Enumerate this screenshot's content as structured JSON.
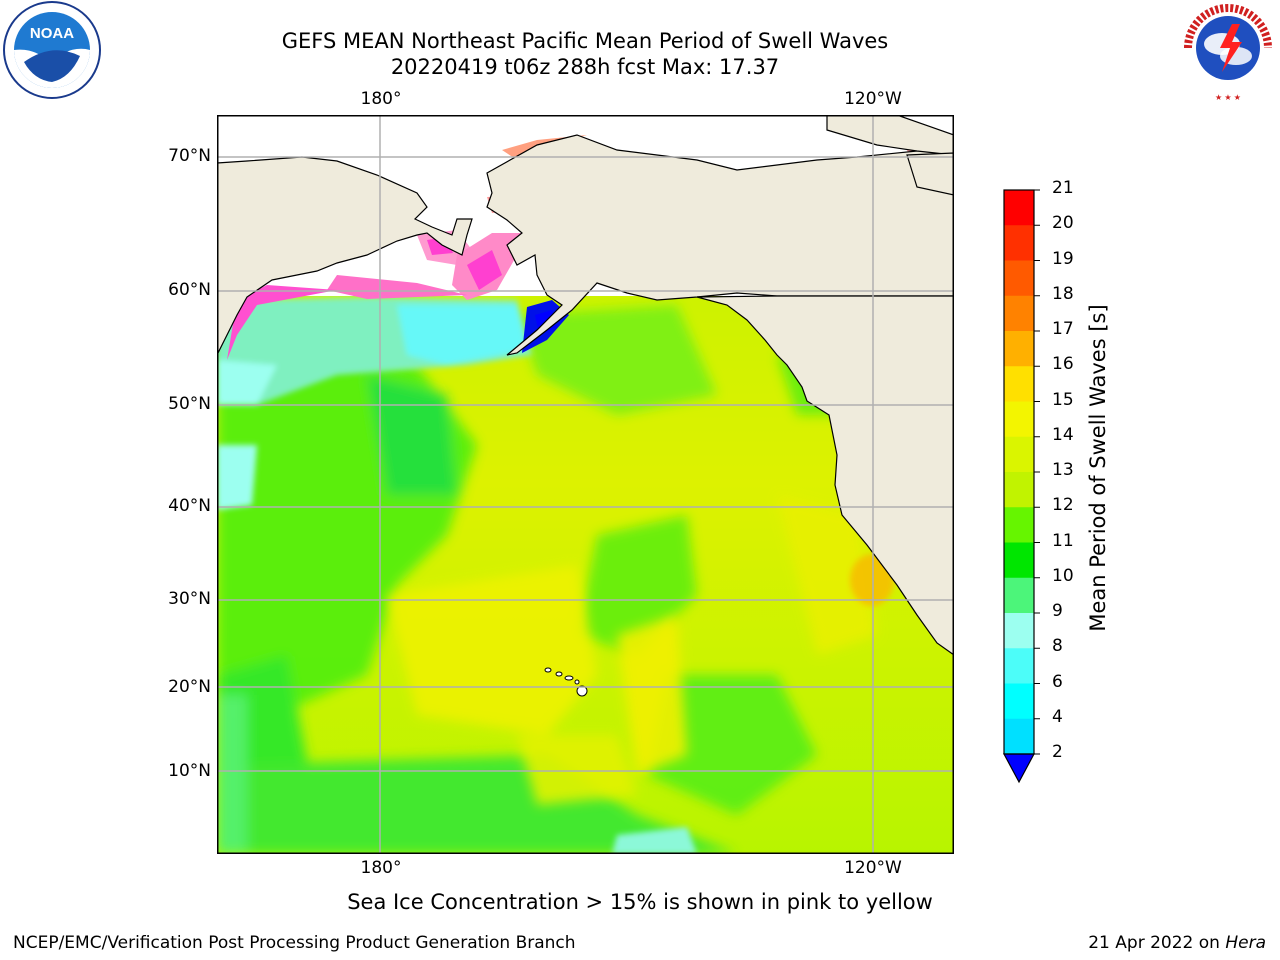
{
  "header": {
    "title_line1": "GEFS MEAN Northeast Pacific Mean Period of Swell Waves",
    "title_line2": "20220419 t06z 288h fcst   Max: 17.37"
  },
  "logos": {
    "left": "NOAA",
    "right": "NATIONAL WEATHER SERVICE"
  },
  "map": {
    "top_lon_labels": [
      "180°",
      "120°W"
    ],
    "bottom_lon_labels": [
      "180°",
      "120°W"
    ],
    "lat_labels": [
      "70°N",
      "60°N",
      "50°N",
      "40°N",
      "30°N",
      "20°N",
      "10°N"
    ],
    "land_color": "#efebdc",
    "ocean_color": "#e6f000"
  },
  "colorbar": {
    "title": "Mean Period of Swell Waves [s]",
    "ticks": [
      "21",
      "20",
      "19",
      "18",
      "17",
      "16",
      "15",
      "14",
      "13",
      "12",
      "11",
      "10",
      "9",
      "8",
      "6",
      "4",
      "2"
    ],
    "colors": [
      "#ff0000",
      "#ff3000",
      "#ff5a00",
      "#ff8200",
      "#ffb000",
      "#ffe000",
      "#f3f500",
      "#daf500",
      "#c1f300",
      "#66f500",
      "#00e600",
      "#4cf57a",
      "#9cfff0",
      "#4cfdf9",
      "#00ffff",
      "#00e0ff",
      "#0070ff"
    ],
    "extend_color": "#0000ff"
  },
  "ice_note": "Sea Ice Concentration > 15% is shown in pink to yellow",
  "footer": {
    "left": "NCEP/EMC/Verification Post Processing Product Generation Branch",
    "right_date": "21 Apr 2022 on",
    "right_host": "Hera"
  }
}
